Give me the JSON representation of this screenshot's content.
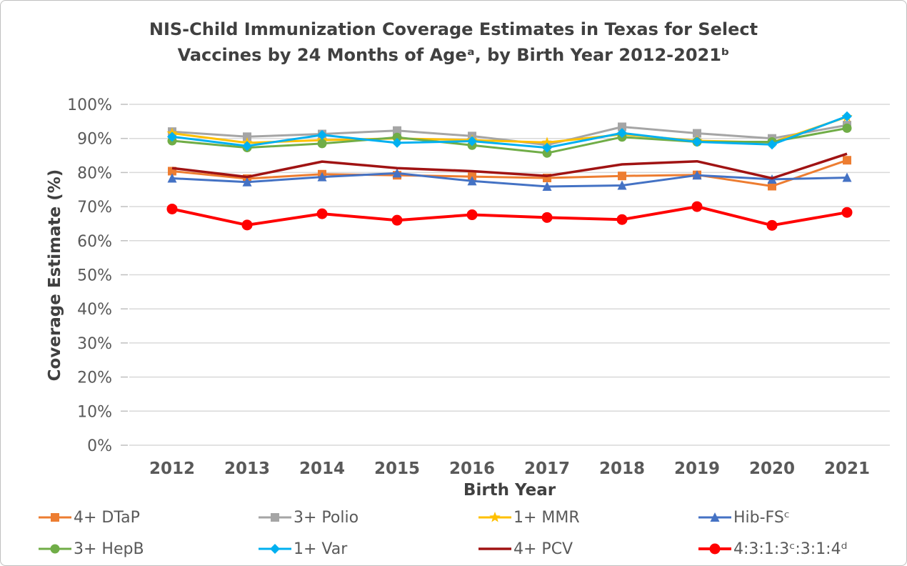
{
  "title": {
    "line1": "NIS-Child Immunization Coverage Estimates in Texas for Select",
    "line2": "Vaccines by 24 Months of Ageᵃ, by Birth Year 2012-2021ᵇ"
  },
  "chart_data": {
    "type": "line",
    "title": "NIS-Child Immunization Coverage Estimates in Texas for Select Vaccines by 24 Months of Ageᵃ, by Birth Year 2012-2021ᵇ",
    "xlabel": "Birth Year",
    "ylabel": "Coverage Estimate (%)",
    "categories": [
      "2012",
      "2013",
      "2014",
      "2015",
      "2016",
      "2017",
      "2018",
      "2019",
      "2020",
      "2021"
    ],
    "ylim": [
      0,
      100
    ],
    "ytick_step": 10,
    "yticks": [
      "0%",
      "10%",
      "20%",
      "30%",
      "40%",
      "50%",
      "60%",
      "70%",
      "80%",
      "90%",
      "100%"
    ],
    "grid": "horizontal",
    "legend_position": "bottom",
    "legend_rows": 2,
    "legend_columns": 4,
    "series": [
      {
        "name": "4+ DTaP",
        "color": "#ED7D31",
        "marker": "square",
        "line_width": 3,
        "values": [
          80.4,
          78.2,
          79.5,
          79.2,
          78.8,
          78.4,
          79.0,
          79.3,
          76.0,
          83.6
        ]
      },
      {
        "name": "3+ Polio",
        "color": "#A5A5A5",
        "marker": "square",
        "line_width": 3,
        "values": [
          92.0,
          90.5,
          91.3,
          92.3,
          90.7,
          88.1,
          93.4,
          91.5,
          90.0,
          93.9
        ]
      },
      {
        "name": "1+ MMR",
        "color": "#FFC000",
        "marker": "star",
        "line_width": 3,
        "values": [
          91.5,
          88.7,
          89.5,
          90.0,
          89.5,
          88.8,
          91.2,
          89.3,
          88.8,
          96.3
        ]
      },
      {
        "name": "Hib-FSᶜ",
        "color": "#4472C4",
        "marker": "triangle",
        "line_width": 3,
        "values": [
          78.3,
          77.2,
          78.7,
          79.8,
          77.5,
          75.9,
          76.2,
          79.2,
          78.0,
          78.5
        ]
      },
      {
        "name": "3+ HepB",
        "color": "#70AD47",
        "marker": "circle",
        "line_width": 3,
        "values": [
          89.3,
          87.3,
          88.5,
          90.3,
          88.0,
          85.7,
          90.4,
          89.0,
          89.0,
          93.0
        ]
      },
      {
        "name": "1+ Var",
        "color": "#00B0F0",
        "marker": "diamond",
        "line_width": 3,
        "values": [
          90.5,
          87.8,
          91.0,
          88.7,
          89.2,
          87.3,
          91.6,
          89.0,
          88.2,
          96.5
        ]
      },
      {
        "name": "4+ PCV",
        "color": "#A01313",
        "marker": "none",
        "line_width": 3.5,
        "values": [
          81.3,
          78.7,
          83.2,
          81.3,
          80.4,
          79.0,
          82.4,
          83.3,
          78.3,
          85.5
        ]
      },
      {
        "name": "4:3:1:3ᶜ:3:1:4ᵈ",
        "color": "#FF0000",
        "marker": "circle",
        "line_width": 4,
        "values": [
          69.3,
          64.6,
          67.9,
          66.0,
          67.6,
          66.8,
          66.2,
          70.0,
          64.5,
          68.3
        ]
      }
    ],
    "style": {
      "grid_color": "#D9D9D9",
      "tick_color": "#BFBFBF",
      "tick_label_color": "#595959",
      "axis_title_color": "#404040",
      "title_color": "#404040"
    }
  }
}
